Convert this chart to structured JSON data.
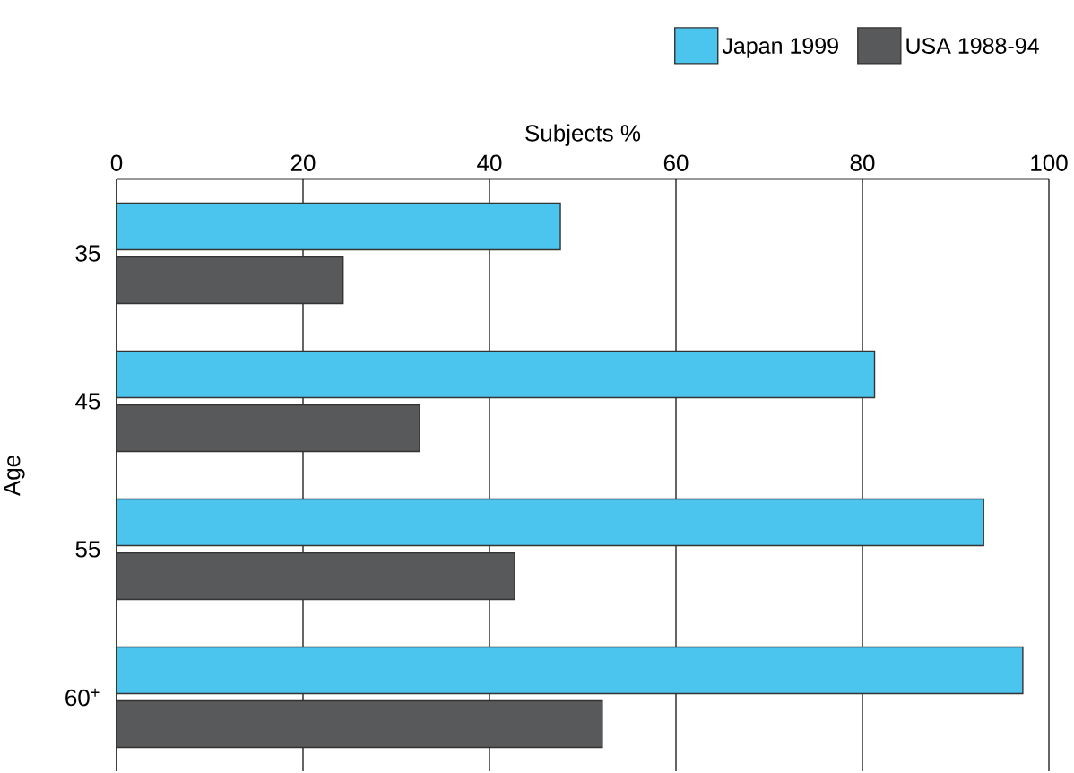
{
  "chart_data": {
    "type": "bar",
    "orientation": "horizontal",
    "xlabel": "Subjects    %",
    "ylabel": "Age",
    "categories": [
      "35",
      "45",
      "55",
      "60$^{+}$"
    ],
    "series": [
      {
        "name": "Japan 1999",
        "color": "#4bc5ee",
        "values": [
          47.6,
          81.3,
          93.0,
          97.2
        ]
      },
      {
        "name": "USA 1988-94",
        "color": "#58595b",
        "values": [
          24.3,
          32.5,
          42.7,
          52.1
        ]
      }
    ],
    "xlim": [
      0,
      100
    ],
    "xticks": [
      0,
      20,
      40,
      60,
      80,
      100
    ],
    "grid": "x",
    "legend": "top right"
  }
}
